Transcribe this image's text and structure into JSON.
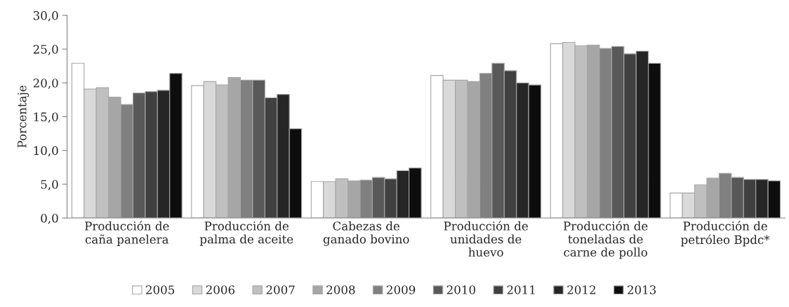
{
  "chart_data": {
    "type": "bar",
    "ylabel": "Porcentaje",
    "categories": [
      "Producción de\ncaña panelera",
      "Producción de\npalma de aceite",
      "Cabezas de\nganado bovino",
      "Producción de\nunidades de\nhuevo",
      "Producción de\ntoneladas de\ncarne de pollo",
      "Producción de\npetróleo Bpdc*"
    ],
    "series": [
      {
        "name": "2005",
        "color": "#ffffff",
        "values": [
          22.9,
          19.6,
          5.4,
          21.1,
          25.8,
          3.7
        ]
      },
      {
        "name": "2006",
        "color": "#d9d9d9",
        "values": [
          19.1,
          20.2,
          5.4,
          20.4,
          26.0,
          3.7
        ]
      },
      {
        "name": "2007",
        "color": "#bfbfbf",
        "values": [
          19.3,
          19.7,
          5.8,
          20.4,
          25.5,
          4.9
        ]
      },
      {
        "name": "2008",
        "color": "#a6a6a6",
        "values": [
          17.9,
          20.8,
          5.5,
          20.2,
          25.6,
          5.9
        ]
      },
      {
        "name": "2009",
        "color": "#808080",
        "values": [
          16.8,
          20.4,
          5.6,
          21.4,
          25.1,
          6.6
        ]
      },
      {
        "name": "2010",
        "color": "#595959",
        "values": [
          18.5,
          20.4,
          6.0,
          22.9,
          25.4,
          6.0
        ]
      },
      {
        "name": "2011",
        "color": "#404040",
        "values": [
          18.7,
          17.8,
          5.8,
          21.8,
          24.3,
          5.7
        ]
      },
      {
        "name": "2012",
        "color": "#262626",
        "values": [
          18.9,
          18.3,
          7.0,
          20.0,
          24.7,
          5.7
        ]
      },
      {
        "name": "2013",
        "color": "#0d0d0d",
        "values": [
          21.4,
          13.2,
          7.4,
          19.7,
          22.9,
          5.5
        ]
      }
    ],
    "ylim": [
      0,
      30
    ],
    "yticks": [
      {
        "value": 0,
        "label": "0,0"
      },
      {
        "value": 5,
        "label": "5,0"
      },
      {
        "value": 10,
        "label": "10,0"
      },
      {
        "value": 15,
        "label": "15,0"
      },
      {
        "value": 20,
        "label": "20,0"
      },
      {
        "value": 25,
        "label": "25,0"
      },
      {
        "value": 30,
        "label": "30,0"
      }
    ],
    "grid": false,
    "legend": "bottom"
  }
}
